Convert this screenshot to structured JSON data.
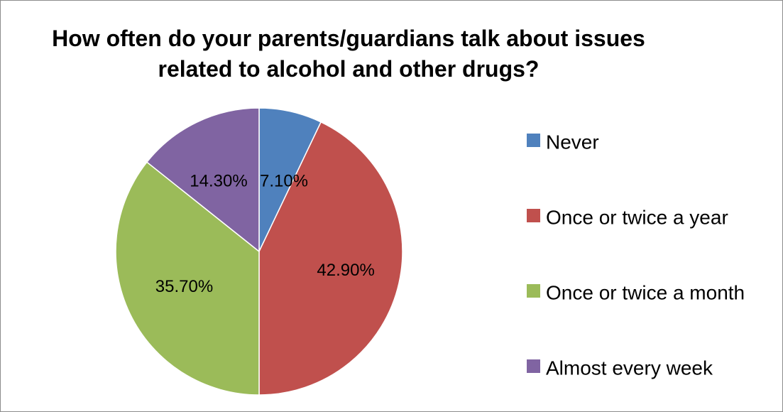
{
  "chart_data": {
    "type": "pie",
    "title": "How often do your parents/guardians talk about issues related to alcohol and other drugs?",
    "title_lines": [
      "How often do your parents/guardians talk about issues",
      "related to alcohol and other drugs?"
    ],
    "categories": [
      "Never",
      "Once or twice a year",
      "Once or twice a month",
      "Almost every week"
    ],
    "values": [
      7.1,
      42.9,
      35.7,
      14.3
    ],
    "labels": [
      "7.10%",
      "42.90%",
      "35.70%",
      "14.30%"
    ],
    "colors": [
      "#4f81bd",
      "#c0504d",
      "#9bbb59",
      "#8064a2"
    ],
    "legend_position": "right"
  }
}
